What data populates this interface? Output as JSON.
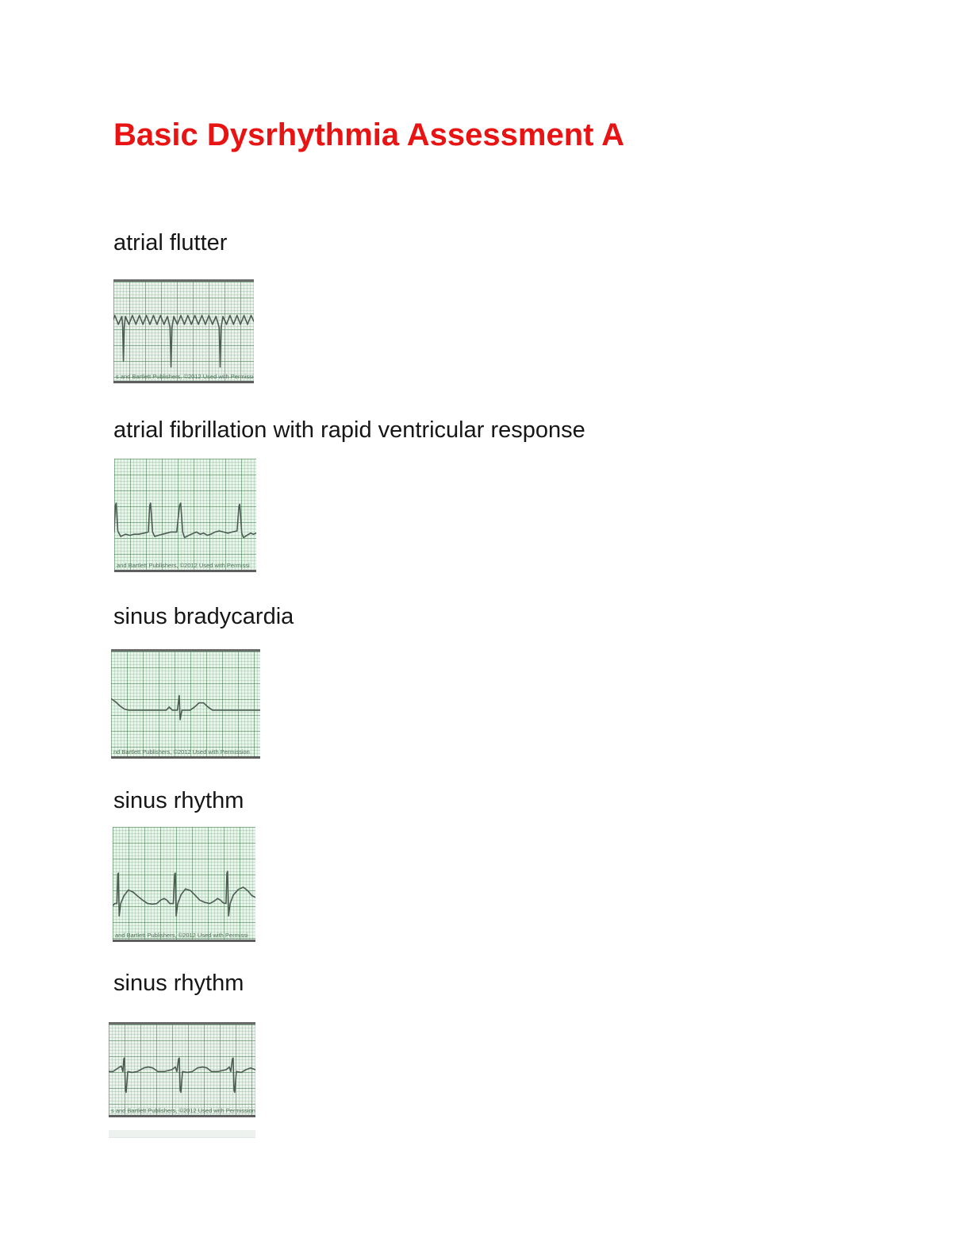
{
  "page": {
    "title": "Basic Dysrhythmia Assessment A",
    "title_color": "#e81414"
  },
  "ecg_style": {
    "grid_background": "#ebf4ec",
    "grid_minor_line": "#cfe3d1",
    "grid_major_line": "#9cc2a0",
    "trace_color": "#4c5c52",
    "border_color": "#5e5e5e"
  },
  "strips": [
    {
      "label": "atrial flutter",
      "caption": "s and Bartlett Publishers, ©2012 Used with Permission",
      "trace": [
        [
          0,
          38
        ],
        [
          1,
          34
        ],
        [
          3.5,
          43
        ],
        [
          6,
          35
        ],
        [
          6.6,
          46
        ],
        [
          7.1,
          80
        ],
        [
          7.7,
          46
        ],
        [
          8.5,
          35
        ],
        [
          11,
          43
        ],
        [
          13.5,
          34
        ],
        [
          16,
          43
        ],
        [
          18.5,
          34
        ],
        [
          21,
          43
        ],
        [
          23.5,
          34
        ],
        [
          26,
          43
        ],
        [
          28.5,
          34
        ],
        [
          31,
          43
        ],
        [
          33.5,
          34
        ],
        [
          36,
          43
        ],
        [
          38.5,
          35
        ],
        [
          40.3,
          46
        ],
        [
          41,
          86
        ],
        [
          41.7,
          46
        ],
        [
          43,
          35
        ],
        [
          45.5,
          43
        ],
        [
          48,
          34
        ],
        [
          50.5,
          43
        ],
        [
          53,
          34
        ],
        [
          55.5,
          43
        ],
        [
          58,
          34
        ],
        [
          60.5,
          43
        ],
        [
          63,
          34
        ],
        [
          65.5,
          43
        ],
        [
          68,
          34
        ],
        [
          70.5,
          43
        ],
        [
          73,
          35
        ],
        [
          75.3,
          46
        ],
        [
          76,
          86
        ],
        [
          76.7,
          46
        ],
        [
          78,
          35
        ],
        [
          80.5,
          43
        ],
        [
          83,
          34
        ],
        [
          85.5,
          43
        ],
        [
          88,
          34
        ],
        [
          90.5,
          43
        ],
        [
          93,
          34
        ],
        [
          95.5,
          43
        ],
        [
          98,
          34
        ],
        [
          100,
          40
        ]
      ]
    },
    {
      "label": "atrial fibrillation with rapid ventricular response",
      "caption": "and Bartlett Publishers, ©2012 Used with Permissi",
      "trace": [
        [
          0,
          66
        ],
        [
          0.8,
          42
        ],
        [
          1.4,
          40
        ],
        [
          2.5,
          65
        ],
        [
          4.5,
          70
        ],
        [
          8,
          68
        ],
        [
          11,
          69
        ],
        [
          14,
          68
        ],
        [
          17,
          68
        ],
        [
          21,
          67
        ],
        [
          24,
          66
        ],
        [
          25,
          42
        ],
        [
          25.6,
          40
        ],
        [
          27,
          66
        ],
        [
          28.5,
          70
        ],
        [
          31,
          69
        ],
        [
          34,
          68
        ],
        [
          37,
          67
        ],
        [
          40,
          66
        ],
        [
          44,
          66
        ],
        [
          46,
          42
        ],
        [
          46.8,
          40
        ],
        [
          48.2,
          66
        ],
        [
          49.5,
          71
        ],
        [
          52.5,
          69
        ],
        [
          56,
          67
        ],
        [
          58,
          66
        ],
        [
          60.5,
          68
        ],
        [
          63,
          67
        ],
        [
          65.5,
          69
        ],
        [
          68,
          68
        ],
        [
          71,
          66
        ],
        [
          74,
          65
        ],
        [
          77,
          66
        ],
        [
          80,
          67
        ],
        [
          83,
          66
        ],
        [
          86.5,
          65
        ],
        [
          87.8,
          43
        ],
        [
          88.4,
          41
        ],
        [
          89.8,
          67
        ],
        [
          91,
          71
        ],
        [
          93.5,
          69
        ],
        [
          96,
          67
        ],
        [
          98,
          68
        ],
        [
          100,
          67
        ]
      ]
    },
    {
      "label": "sinus bradycardia",
      "caption": "nd Bartlett Publishers, ©2012 Used with Permission",
      "trace": [
        [
          0,
          45
        ],
        [
          3,
          48
        ],
        [
          6,
          52
        ],
        [
          9,
          55
        ],
        [
          12,
          56
        ],
        [
          20,
          56
        ],
        [
          30,
          56
        ],
        [
          37,
          56
        ],
        [
          39,
          53
        ],
        [
          41,
          56
        ],
        [
          44.5,
          56
        ],
        [
          45.7,
          42
        ],
        [
          46.3,
          65
        ],
        [
          47.5,
          56
        ],
        [
          53,
          56
        ],
        [
          56,
          53
        ],
        [
          59,
          49
        ],
        [
          62,
          49
        ],
        [
          65,
          53
        ],
        [
          68,
          56
        ],
        [
          75,
          56
        ],
        [
          85,
          56
        ],
        [
          100,
          56
        ]
      ]
    },
    {
      "label": "sinus rhythm",
      "caption": "and Bartlett Publishers, ©2012 Used with Permissi",
      "trace": [
        [
          0,
          70
        ],
        [
          1.5,
          68
        ],
        [
          3,
          68
        ],
        [
          3.6,
          42
        ],
        [
          4,
          41
        ],
        [
          4.6,
          79
        ],
        [
          5.6,
          68
        ],
        [
          8,
          61
        ],
        [
          11,
          56
        ],
        [
          14.5,
          58
        ],
        [
          18,
          62
        ],
        [
          21,
          65
        ],
        [
          24.5,
          68
        ],
        [
          28,
          68.5
        ],
        [
          31,
          68
        ],
        [
          33.5,
          65
        ],
        [
          36,
          63.5
        ],
        [
          38,
          65
        ],
        [
          40,
          68
        ],
        [
          42.5,
          68
        ],
        [
          43.4,
          42
        ],
        [
          43.9,
          41
        ],
        [
          44.5,
          79
        ],
        [
          45.6,
          68
        ],
        [
          48,
          60
        ],
        [
          51,
          55
        ],
        [
          54.5,
          56.5
        ],
        [
          58,
          61
        ],
        [
          61,
          65
        ],
        [
          64.5,
          67
        ],
        [
          68,
          68
        ],
        [
          71,
          66
        ],
        [
          73.5,
          63.5
        ],
        [
          75.5,
          65
        ],
        [
          77.5,
          67.5
        ],
        [
          79.4,
          68
        ],
        [
          80,
          41
        ],
        [
          80.5,
          39.5
        ],
        [
          81.2,
          79
        ],
        [
          82.3,
          68
        ],
        [
          84.5,
          60.5
        ],
        [
          88,
          55.5
        ],
        [
          91.5,
          53.5
        ],
        [
          94.5,
          56.5
        ],
        [
          97.5,
          61
        ],
        [
          100,
          62.5
        ]
      ]
    },
    {
      "label": "sinus rhythm",
      "caption": "s and Bartlett Publishers, ©2012 Used with Permission",
      "trace": [
        [
          0,
          52
        ],
        [
          3,
          52
        ],
        [
          6.5,
          48
        ],
        [
          8.6,
          46
        ],
        [
          9.7,
          52
        ],
        [
          10.3,
          38
        ],
        [
          10.8,
          37
        ],
        [
          11.4,
          73
        ],
        [
          11.9,
          75
        ],
        [
          13,
          52
        ],
        [
          16,
          53
        ],
        [
          19.5,
          52
        ],
        [
          24,
          48
        ],
        [
          27,
          47
        ],
        [
          30,
          48
        ],
        [
          33.5,
          52
        ],
        [
          38,
          52
        ],
        [
          43,
          50
        ],
        [
          45.4,
          47
        ],
        [
          46.5,
          52
        ],
        [
          47.6,
          38
        ],
        [
          48.1,
          37
        ],
        [
          48.7,
          73
        ],
        [
          49.2,
          75
        ],
        [
          50.3,
          52
        ],
        [
          53.5,
          53
        ],
        [
          57,
          52
        ],
        [
          60.5,
          48
        ],
        [
          64,
          47
        ],
        [
          67,
          48
        ],
        [
          70,
          52
        ],
        [
          74.5,
          52
        ],
        [
          80,
          50
        ],
        [
          82.2,
          47
        ],
        [
          83.2,
          52
        ],
        [
          84.3,
          38
        ],
        [
          84.8,
          37
        ],
        [
          85.4,
          73
        ],
        [
          85.9,
          75
        ],
        [
          87,
          52
        ],
        [
          90.3,
          53
        ],
        [
          93.5,
          50
        ],
        [
          96.7,
          48
        ],
        [
          100,
          50
        ]
      ]
    }
  ]
}
